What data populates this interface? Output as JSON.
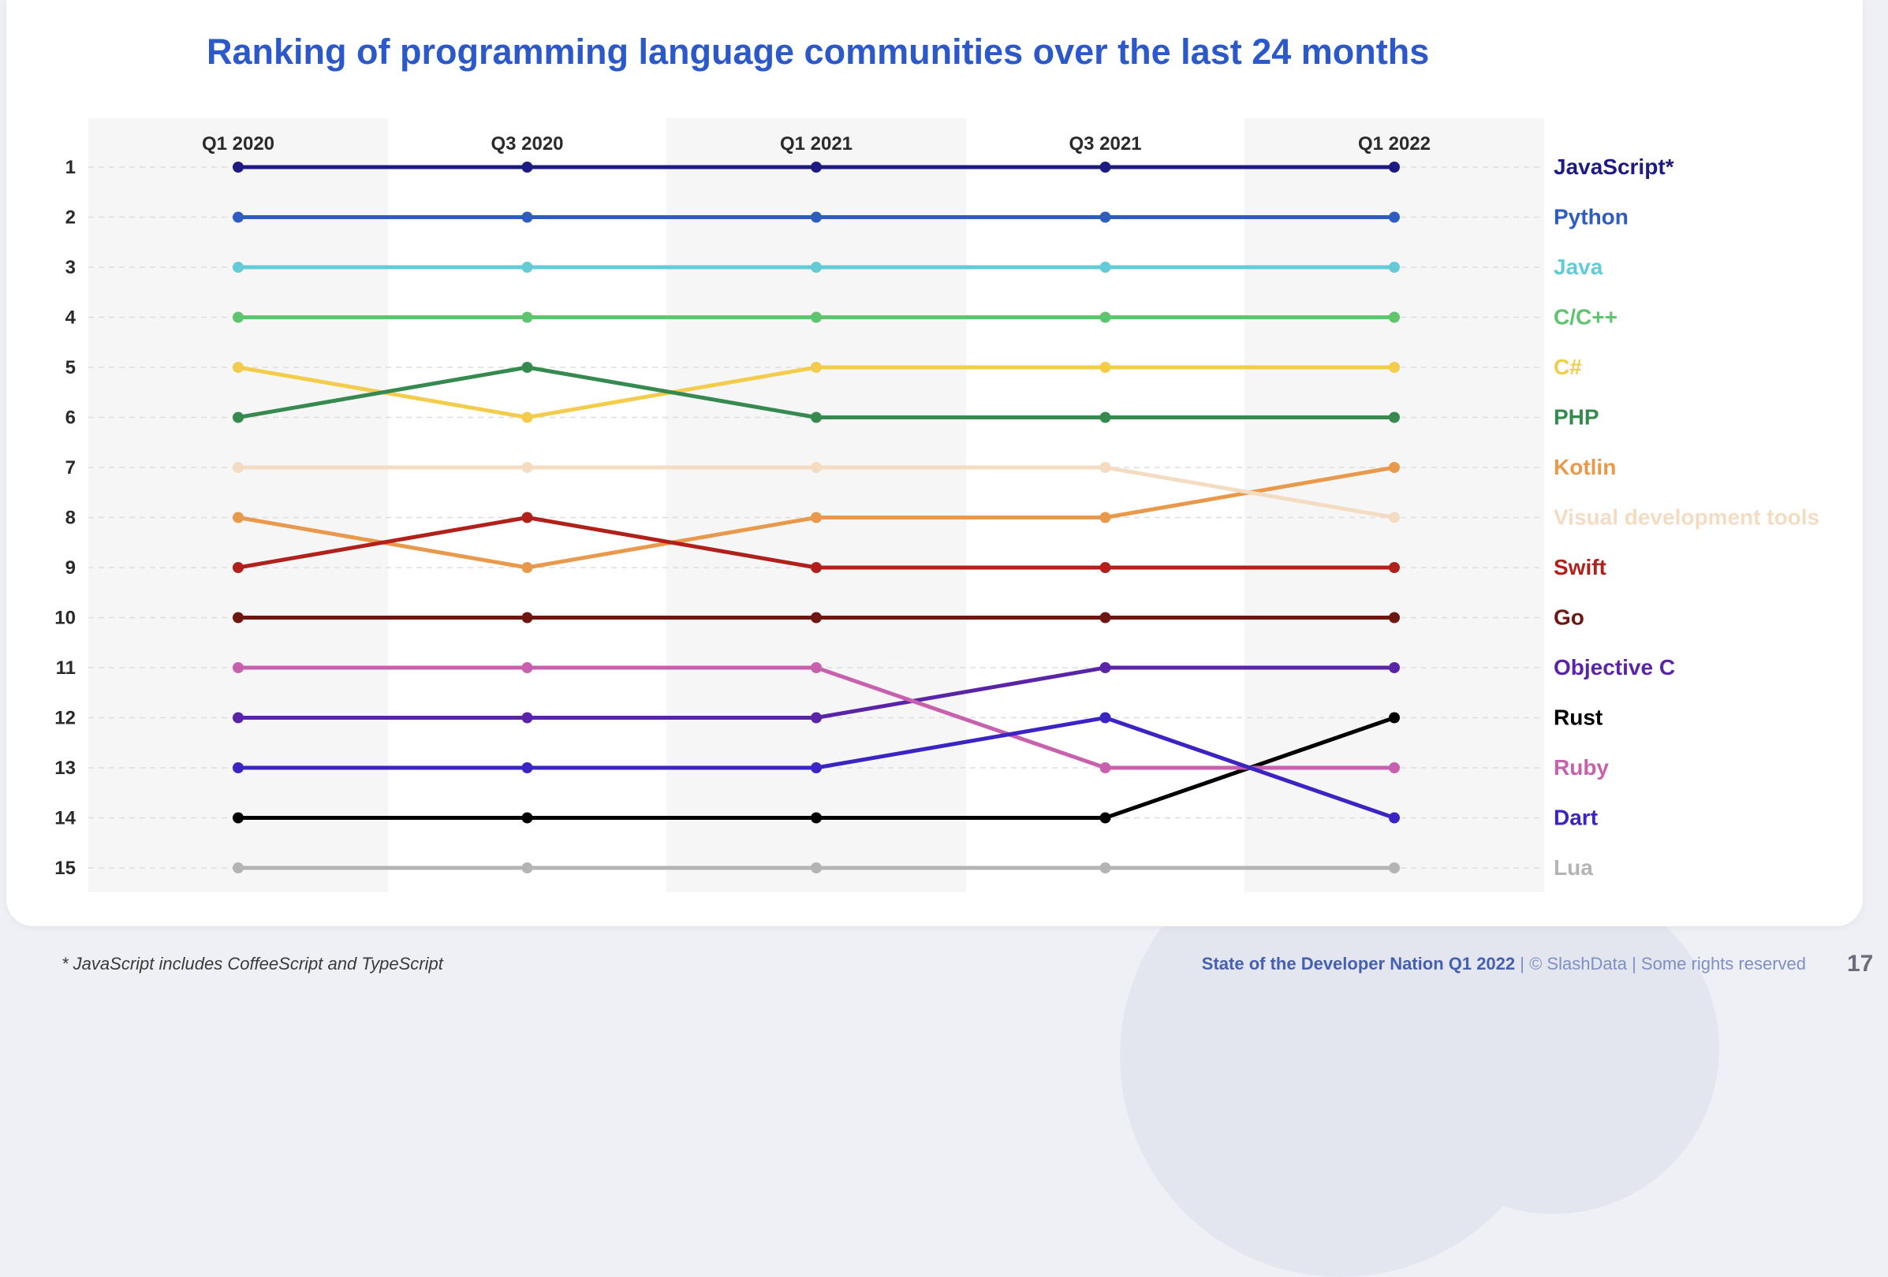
{
  "page": {
    "title": "Ranking of programming language communities over the last 24 months",
    "footnote": "* JavaScript includes CoffeeScript and TypeScript",
    "credit_report": "State of the Developer Nation Q1 2022",
    "credit_sep1": "|",
    "credit_copyright": "© SlashData",
    "credit_sep2": "|",
    "credit_rights": "Some rights reserved",
    "page_number": "17"
  },
  "chart_data": {
    "type": "line",
    "title": "Ranking of programming language communities over the last 24 months",
    "xlabel": "",
    "ylabel": "",
    "categories": [
      "Q1 2020",
      "Q3 2020",
      "Q1 2021",
      "Q3 2021",
      "Q1 2022"
    ],
    "ylim": [
      1,
      15
    ],
    "y_inverted": true,
    "rank_labels": [
      "1",
      "2",
      "3",
      "4",
      "5",
      "6",
      "7",
      "8",
      "9",
      "10",
      "11",
      "12",
      "13",
      "14",
      "15"
    ],
    "legend": "right",
    "series": [
      {
        "name": "JavaScript*",
        "color": "#1d1b82",
        "values": [
          1,
          1,
          1,
          1,
          1
        ]
      },
      {
        "name": "Python",
        "color": "#2f5cc0",
        "values": [
          2,
          2,
          2,
          2,
          2
        ]
      },
      {
        "name": "Java",
        "color": "#62cbd6",
        "values": [
          3,
          3,
          3,
          3,
          3
        ]
      },
      {
        "name": "C/C++",
        "color": "#5fc46e",
        "values": [
          4,
          4,
          4,
          4,
          4
        ]
      },
      {
        "name": "C#",
        "color": "#f4cc4c",
        "values": [
          5,
          6,
          5,
          5,
          5
        ]
      },
      {
        "name": "PHP",
        "color": "#378a4f",
        "values": [
          6,
          5,
          6,
          6,
          6
        ]
      },
      {
        "name": "Kotlin",
        "color": "#e9994b",
        "values": [
          8,
          9,
          8,
          8,
          7
        ]
      },
      {
        "name": "Visual development tools",
        "color": "#f3dcc2",
        "values": [
          7,
          7,
          7,
          7,
          8
        ]
      },
      {
        "name": "Swift",
        "color": "#b0211c",
        "values": [
          9,
          8,
          9,
          9,
          9
        ]
      },
      {
        "name": "Go",
        "color": "#6e1710",
        "values": [
          10,
          10,
          10,
          10,
          10
        ]
      },
      {
        "name": "Objective C",
        "color": "#5a24a6",
        "values": [
          12,
          12,
          12,
          11,
          11
        ]
      },
      {
        "name": "Rust",
        "color": "#000000",
        "values": [
          14,
          14,
          14,
          14,
          12
        ]
      },
      {
        "name": "Ruby",
        "color": "#c760ad",
        "values": [
          11,
          11,
          11,
          13,
          13
        ]
      },
      {
        "name": "Dart",
        "color": "#3a24c4",
        "values": [
          13,
          13,
          13,
          12,
          14
        ]
      },
      {
        "name": "Lua",
        "color": "#b4b4b4",
        "values": [
          15,
          15,
          15,
          15,
          15
        ]
      }
    ]
  }
}
